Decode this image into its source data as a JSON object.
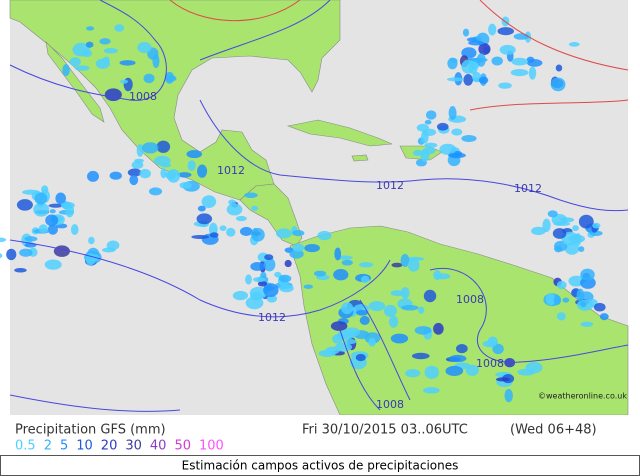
{
  "map": {
    "isobar_labels": [
      "1008",
      "1012",
      "1012",
      "1012",
      "1012",
      "1008",
      "1008",
      "1008"
    ]
  },
  "legend": {
    "title": "Precipitation GFS (mm)",
    "levels": [
      {
        "label": "0.5",
        "color": "#4fd0ff"
      },
      {
        "label": "2",
        "color": "#33b4ff"
      },
      {
        "label": "5",
        "color": "#1e90ff"
      },
      {
        "label": "10",
        "color": "#1e5adc"
      },
      {
        "label": "20",
        "color": "#2a3cc8"
      },
      {
        "label": "30",
        "color": "#3c3ca0"
      },
      {
        "label": "40",
        "color": "#8a3cc8"
      },
      {
        "label": "50",
        "color": "#d23cd2"
      },
      {
        "label": "100",
        "color": "#ff50ff"
      }
    ]
  },
  "valid_time": "Fri 30/10/2015 03..06UTC",
  "run": "(Wed 06+48)",
  "credit": "©weatheronline.co.uk",
  "caption": "Estimación campos activos de precipitaciones"
}
